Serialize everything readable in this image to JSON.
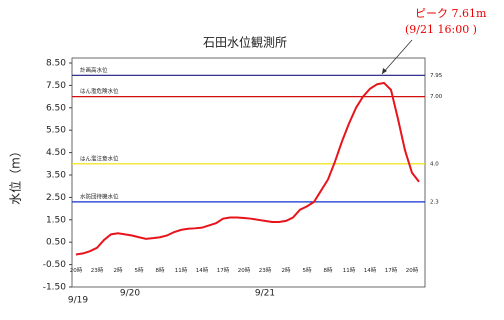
{
  "chart_data": {
    "type": "line",
    "title": "石田水位観測所",
    "y_label": "水位（m）",
    "categories": [
      "20時",
      null,
      null,
      "23時",
      null,
      null,
      "2時",
      null,
      null,
      "5時",
      null,
      null,
      "8時",
      null,
      null,
      "11時",
      null,
      null,
      "14時",
      null,
      null,
      "17時",
      null,
      null,
      "20時",
      null,
      null,
      "23時",
      null,
      null,
      "2時",
      null,
      null,
      "5時",
      null,
      null,
      "8時",
      null,
      null,
      "11時",
      null,
      null,
      "14時",
      null,
      null,
      "17時",
      null,
      null,
      "20時",
      null
    ],
    "dates": [
      "9/19",
      "9/20",
      "9/21"
    ],
    "series": [
      {
        "name": "水位",
        "color": "#e8141c",
        "values": [
          -0.05,
          0.0,
          0.1,
          0.25,
          0.6,
          0.85,
          0.9,
          0.85,
          0.8,
          0.72,
          0.65,
          0.68,
          0.72,
          0.8,
          0.95,
          1.05,
          1.1,
          1.12,
          1.15,
          1.25,
          1.35,
          1.55,
          1.6,
          1.6,
          1.58,
          1.55,
          1.5,
          1.45,
          1.4,
          1.4,
          1.45,
          1.6,
          1.95,
          2.1,
          2.3,
          2.8,
          3.3,
          4.1,
          5.0,
          5.8,
          6.5,
          7.0,
          7.35,
          7.55,
          7.61,
          7.3,
          6.0,
          4.6,
          3.6,
          3.2
        ]
      }
    ],
    "thresholds": [
      {
        "name": "計画高水位",
        "value": 7.95,
        "value_label": "7.95",
        "color": "#1a1a80"
      },
      {
        "name": "はん濫危険水位",
        "value": 7.0,
        "value_label": "7.00",
        "color": "#d01010"
      },
      {
        "name": "はん濫注意水位",
        "value": 4.0,
        "value_label": "4.0",
        "color": "#f0e000"
      },
      {
        "name": "水防団待機水位",
        "value": 2.3,
        "value_label": "2.3",
        "color": "#1030d0"
      }
    ],
    "annotation": {
      "text": "ピーク 7.61m",
      "subtext": "(9/21 16:00 )"
    },
    "ylim": [
      -1.5,
      8.5
    ],
    "yticks": [
      {
        "value": 8.5,
        "label": "8.50"
      },
      {
        "value": 7.5,
        "label": "7.50"
      },
      {
        "value": 6.5,
        "label": "6.50"
      },
      {
        "value": 5.5,
        "label": "5.50"
      },
      {
        "value": 4.5,
        "label": "4.50"
      },
      {
        "value": 3.5,
        "label": "3.50"
      },
      {
        "value": 2.5,
        "label": "2.50"
      },
      {
        "value": 1.5,
        "label": "1.50"
      },
      {
        "value": 0.5,
        "label": "0.50"
      },
      {
        "value": -0.5,
        "label": "-0.50"
      },
      {
        "value": -1.5,
        "label": "-1.50"
      }
    ]
  }
}
